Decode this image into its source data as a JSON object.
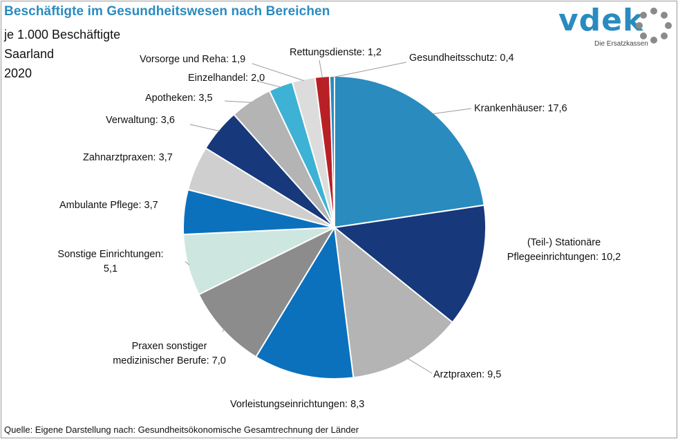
{
  "chart_data": {
    "type": "pie",
    "title": "Beschäftigte im Gesundheitswesen nach Bereichen",
    "subtitle_lines": [
      "je 1.000 Beschäftigte",
      "Saarland",
      "2020"
    ],
    "source": "Quelle: Eigene Darstellung nach: Gesundheitsökonomische  Gesamtrechnung  der Länder",
    "slices": [
      {
        "name": "Krankenhäuser",
        "value": 17.6,
        "color": "#2a8bbf",
        "label_lines": [
          "Krankenhäuser: 17,6"
        ]
      },
      {
        "name": "(Teil-) Stationäre Pflegeeinrichtungen",
        "value": 10.2,
        "color": "#17387a",
        "label_lines": [
          "(Teil-) Stationäre",
          "Pflegeeinrichtungen: 10,2"
        ]
      },
      {
        "name": "Arztpraxen",
        "value": 9.5,
        "color": "#b4b4b4",
        "label_lines": [
          "Arztpraxen: 9,5"
        ]
      },
      {
        "name": "Vorleistungseinrichtungen",
        "value": 8.3,
        "color": "#0b71bd",
        "label_lines": [
          "Vorleistungseinrichtungen: 8,3"
        ]
      },
      {
        "name": "Praxen sonstiger medizinischer Berufe",
        "value": 7.0,
        "color": "#8c8c8c",
        "label_lines": [
          "Praxen sonstiger",
          "medizinischer Berufe: 7,0"
        ]
      },
      {
        "name": "Sonstige Einrichtungen",
        "value": 5.1,
        "color": "#cde6e0",
        "label_lines": [
          "Sonstige Einrichtungen:",
          "5,1"
        ]
      },
      {
        "name": "Ambulante Pflege",
        "value": 3.7,
        "color": "#0b71bd",
        "label_lines": [
          "Ambulante Pflege: 3,7"
        ]
      },
      {
        "name": "Zahnarztpraxen",
        "value": 3.7,
        "color": "#cfcfcf",
        "label_lines": [
          "Zahnarztpraxen: 3,7"
        ]
      },
      {
        "name": "Verwaltung",
        "value": 3.6,
        "color": "#17387a",
        "label_lines": [
          "Verwaltung: 3,6"
        ]
      },
      {
        "name": "Apotheken",
        "value": 3.5,
        "color": "#b4b4b4",
        "label_lines": [
          "Apotheken: 3,5"
        ]
      },
      {
        "name": "Einzelhandel",
        "value": 2.0,
        "color": "#3db2d4",
        "label_lines": [
          "Einzelhandel: 2,0"
        ]
      },
      {
        "name": "Vorsorge und Reha",
        "value": 1.9,
        "color": "#dcdcdc",
        "label_lines": [
          "Vorsorge und Reha: 1,9"
        ]
      },
      {
        "name": "Rettungsdienste",
        "value": 1.2,
        "color": "#b82025",
        "label_lines": [
          "Rettungsdienste: 1,2"
        ]
      },
      {
        "name": "Gesundheitsschutz",
        "value": 0.4,
        "color": "#2a8bbf",
        "label_lines": [
          "Gesundheitsschutz: 0,4"
        ]
      }
    ]
  },
  "logo": {
    "word": "vdek",
    "tagline": "Die Ersatzkassen",
    "color": "#2a8bbf"
  }
}
